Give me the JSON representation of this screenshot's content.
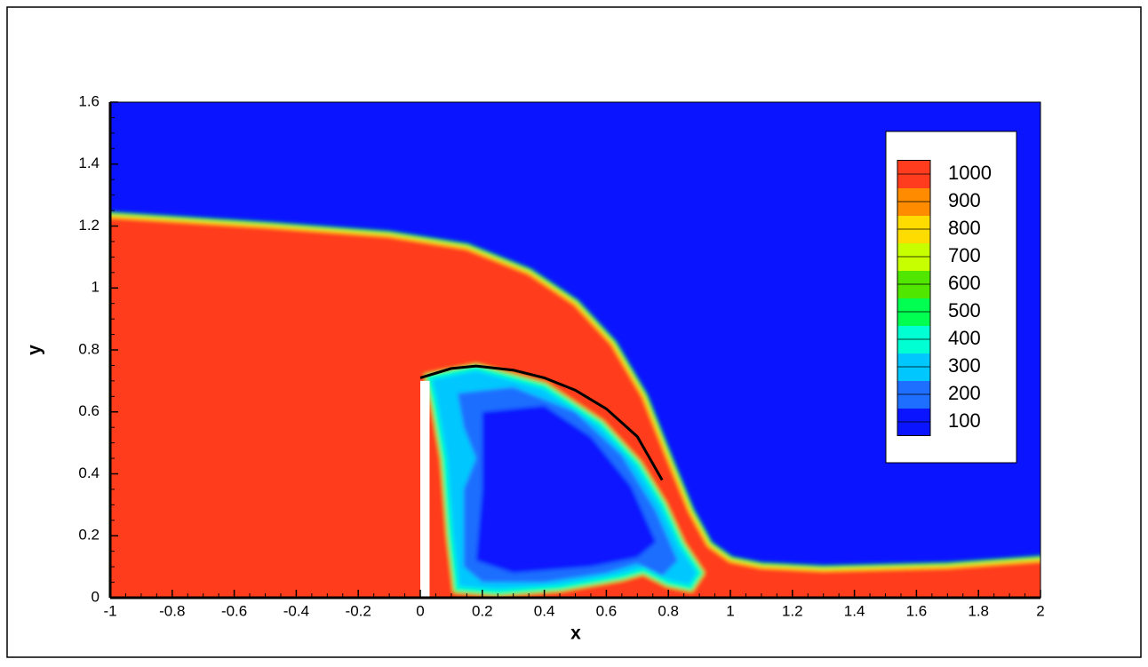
{
  "chart_data": {
    "type": "contour",
    "xlabel": "x",
    "ylabel": "y",
    "xlim": [
      -1,
      2
    ],
    "xticks": [
      -1,
      -0.8,
      -0.6,
      -0.4,
      -0.2,
      0,
      0.2,
      0.4,
      0.6,
      0.8,
      1,
      1.2,
      1.4,
      1.6,
      1.8,
      2
    ],
    "ylim": [
      0,
      1.6
    ],
    "yticks": [
      0,
      0.2,
      0.4,
      0.6,
      0.8,
      1,
      1.2,
      1.4,
      1.6
    ],
    "colorbar": {
      "levels": [
        100,
        200,
        300,
        400,
        500,
        600,
        700,
        800,
        900,
        1000
      ],
      "colors": [
        "#0a14ff",
        "#1e6eff",
        "#00c8ff",
        "#00ffd2",
        "#00ff50",
        "#50e600",
        "#c8ff00",
        "#ffdc00",
        "#ff8c00",
        "#ff3c1e"
      ]
    },
    "curve": {
      "x": [
        0,
        0.1,
        0.18,
        0.3,
        0.4,
        0.5,
        0.6,
        0.7,
        0.78
      ],
      "y": [
        0.71,
        0.74,
        0.748,
        0.735,
        0.71,
        0.67,
        0.61,
        0.52,
        0.38
      ],
      "color": "#000000"
    }
  }
}
